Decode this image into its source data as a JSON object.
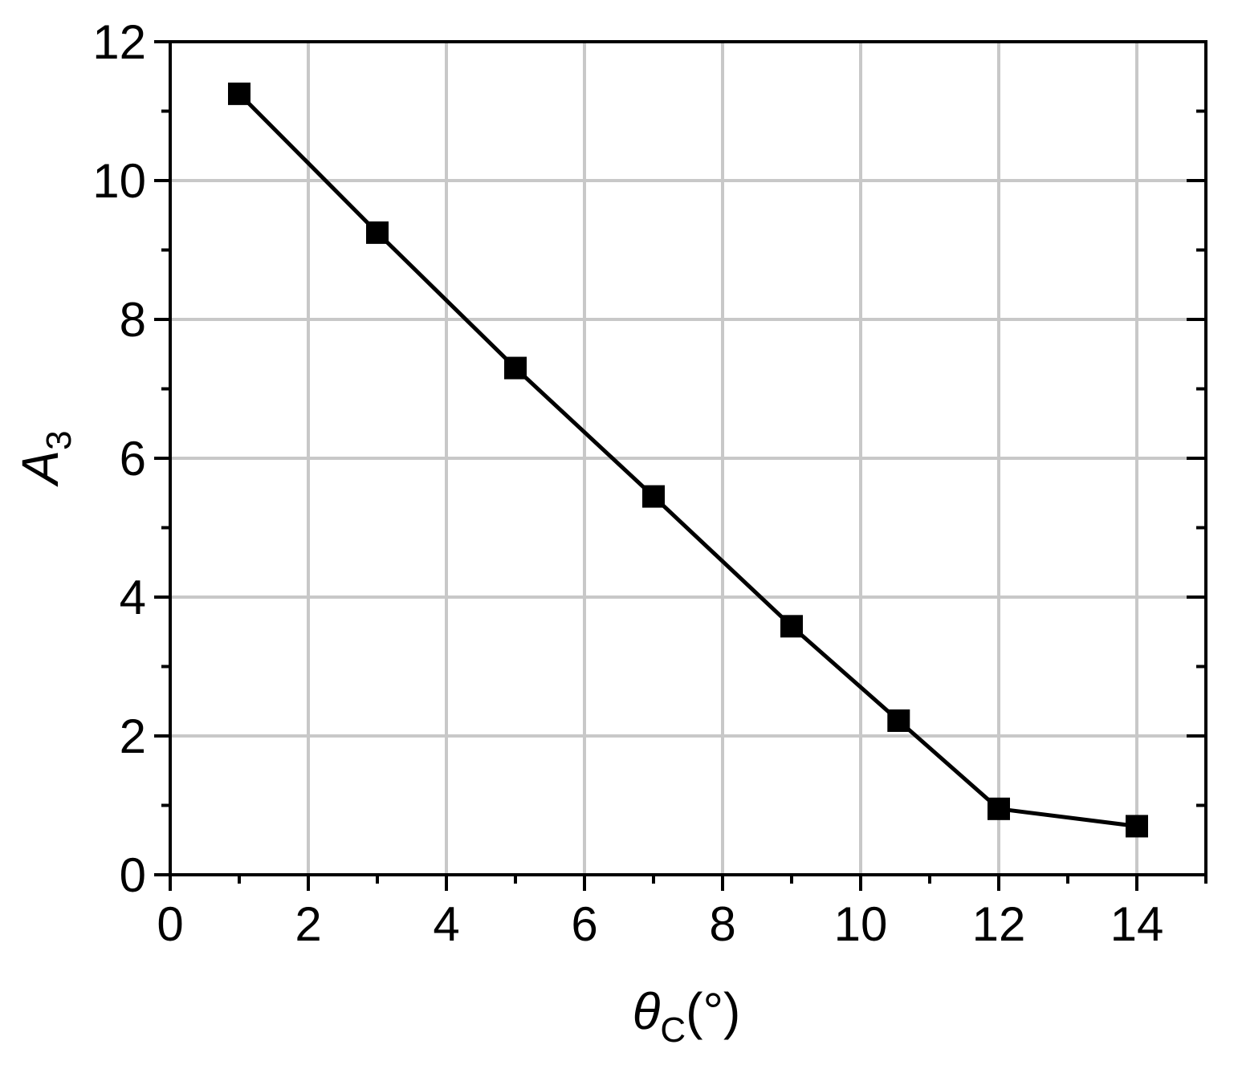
{
  "chart_data": {
    "type": "line",
    "title": "",
    "xlabel": {
      "main": "θ",
      "sub": "C",
      "unit": "(°)"
    },
    "ylabel": {
      "main": "A",
      "sub": "3"
    },
    "xlim": [
      0,
      15
    ],
    "ylim": [
      0,
      12
    ],
    "x_ticks": [
      0,
      2,
      4,
      6,
      8,
      10,
      12,
      14
    ],
    "x_minor_ticks": [
      1,
      3,
      5,
      7,
      9,
      11,
      13,
      15
    ],
    "y_ticks": [
      0,
      2,
      4,
      6,
      8,
      10,
      12
    ],
    "y_minor_ticks": [
      1,
      3,
      5,
      7,
      9,
      11
    ],
    "grid": true,
    "legend": "none",
    "colors": {
      "line": "#000000",
      "marker": "#000000",
      "grid": "#c8c8c8",
      "axis": "#000000"
    },
    "marker": "square",
    "series": [
      {
        "x": [
          1,
          3,
          5,
          7,
          9,
          10.55,
          12,
          14
        ],
        "y": [
          11.25,
          9.25,
          7.3,
          5.45,
          3.58,
          2.22,
          0.95,
          0.7
        ]
      }
    ]
  }
}
